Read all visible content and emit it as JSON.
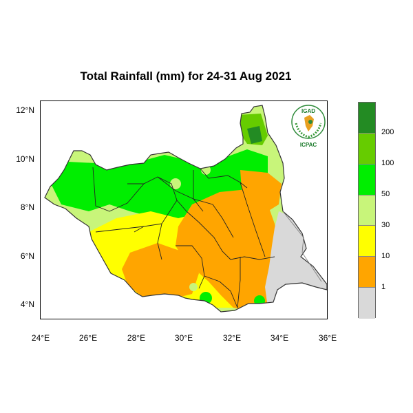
{
  "title": "Total Rainfall (mm) for 24-31 Aug 2021",
  "y_ticks": [
    "12°N",
    "10°N",
    "8°N",
    "6°N",
    "4°N"
  ],
  "x_ticks": [
    "24°E",
    "26°E",
    "28°E",
    "30°E",
    "32°E",
    "34°E",
    "36°E"
  ],
  "legend": {
    "labels": [
      "200",
      "100",
      "50",
      "30",
      "10",
      "1"
    ],
    "colors": [
      "#238b23",
      "#66cc00",
      "#00ee00",
      "#c8f57a",
      "#ffff00",
      "#ffa500",
      "#d9d9d9"
    ]
  },
  "logo": {
    "top_text": "IGAD",
    "bottom_text": "ICPAC"
  }
}
